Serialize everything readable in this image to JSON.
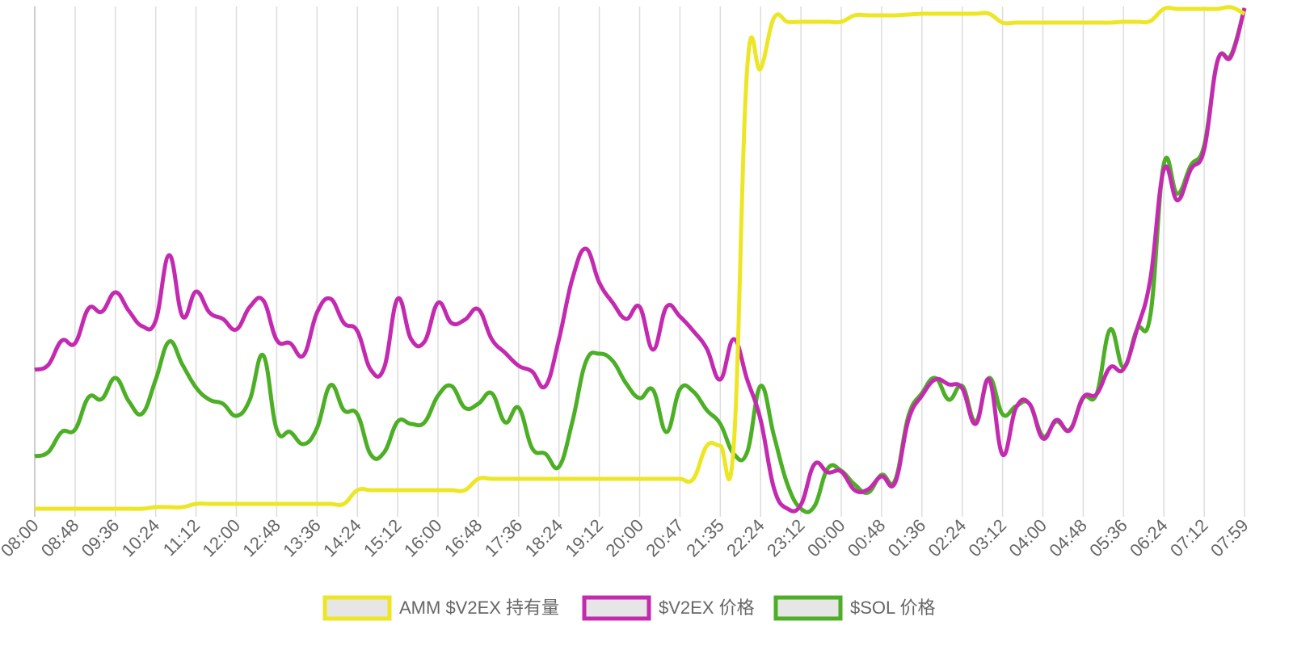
{
  "chart_data": {
    "type": "line",
    "categories": [
      "08:00",
      null,
      null,
      "08:48",
      null,
      null,
      "09:36",
      null,
      null,
      "10:24",
      null,
      null,
      "11:12",
      null,
      null,
      "12:00",
      null,
      null,
      "12:48",
      null,
      null,
      "13:36",
      null,
      null,
      "14:24",
      null,
      null,
      "15:12",
      null,
      null,
      "16:00",
      null,
      null,
      "16:48",
      null,
      null,
      "17:36",
      null,
      null,
      "18:24",
      null,
      null,
      "19:12",
      null,
      null,
      "20:00",
      null,
      null,
      "20:47",
      null,
      null,
      "21:35",
      null,
      null,
      "22:24",
      null,
      null,
      "23:12",
      null,
      null,
      "00:00",
      null,
      null,
      "00:48",
      null,
      null,
      "01:36",
      null,
      null,
      "02:24",
      null,
      null,
      "03:12",
      null,
      null,
      "04:00",
      null,
      null,
      "04:48",
      null,
      null,
      "05:36",
      null,
      null,
      "06:24",
      null,
      null,
      "07:12",
      null,
      null,
      "07:59"
    ],
    "series": [
      {
        "name": "AMM $V2EX 持有量",
        "color": "#ede625",
        "values": [
          0,
          0,
          0,
          0,
          0,
          0,
          0,
          0,
          0,
          2,
          2,
          2,
          6,
          6,
          6,
          6,
          6,
          6,
          6,
          6,
          6,
          6,
          6,
          6,
          23,
          23,
          23,
          23,
          23,
          23,
          23,
          23,
          23,
          37,
          37,
          37,
          37,
          37,
          37,
          37,
          37,
          37,
          37,
          37,
          37,
          37,
          37,
          37,
          37,
          37,
          78,
          78,
          78,
          545,
          545,
          608,
          603,
          603,
          603,
          603,
          603,
          611,
          611,
          611,
          611,
          612,
          613,
          613,
          613,
          613,
          613,
          613,
          602,
          602,
          602,
          602,
          602,
          602,
          602,
          602,
          602,
          603,
          603,
          604,
          619,
          619,
          619,
          619,
          619,
          621,
          613
        ]
      },
      {
        "name": "$V2EX 价格",
        "color": "#c42ab0",
        "values": [
          172,
          178,
          208,
          205,
          248,
          244,
          268,
          245,
          226,
          233,
          314,
          238,
          269,
          243,
          235,
          222,
          250,
          258,
          209,
          205,
          190,
          243,
          260,
          230,
          220,
          172,
          175,
          260,
          210,
          207,
          255,
          230,
          234,
          247,
          210,
          193,
          177,
          170,
          152,
          210,
          285,
          322,
          280,
          255,
          235,
          250,
          197,
          250,
          238,
          220,
          198,
          160,
          210,
          160,
          110,
          25,
          0,
          5,
          55,
          45,
          46,
          23,
          24,
          40,
          32,
          110,
          140,
          160,
          154,
          149,
          105,
          160,
          67,
          125,
          130,
          87,
          110,
          97,
          138,
          142,
          175,
          173,
          222,
          285,
          420,
          382,
          420,
          445,
          555,
          560,
          620
        ]
      },
      {
        "name": "$SOL 价格",
        "color": "#4caf25",
        "values": [
          65,
          70,
          95,
          98,
          138,
          136,
          162,
          133,
          118,
          160,
          207,
          178,
          150,
          135,
          130,
          115,
          135,
          190,
          98,
          95,
          80,
          100,
          153,
          122,
          117,
          67,
          70,
          108,
          105,
          107,
          140,
          152,
          125,
          130,
          143,
          107,
          125,
          75,
          68,
          52,
          108,
          182,
          192,
          183,
          155,
          137,
          147,
          95,
          148,
          145,
          122,
          105,
          68,
          70,
          152,
          90,
          30,
          0,
          3,
          50,
          47,
          30,
          20,
          42,
          35,
          115,
          143,
          162,
          135,
          152,
          108,
          162,
          117,
          127,
          130,
          90,
          108,
          98,
          137,
          142,
          222,
          175,
          222,
          240,
          427,
          390,
          425,
          450,
          555,
          562,
          620
        ]
      }
    ],
    "ylim": [
      0,
      625
    ],
    "grid": true,
    "legend": "bottom"
  }
}
